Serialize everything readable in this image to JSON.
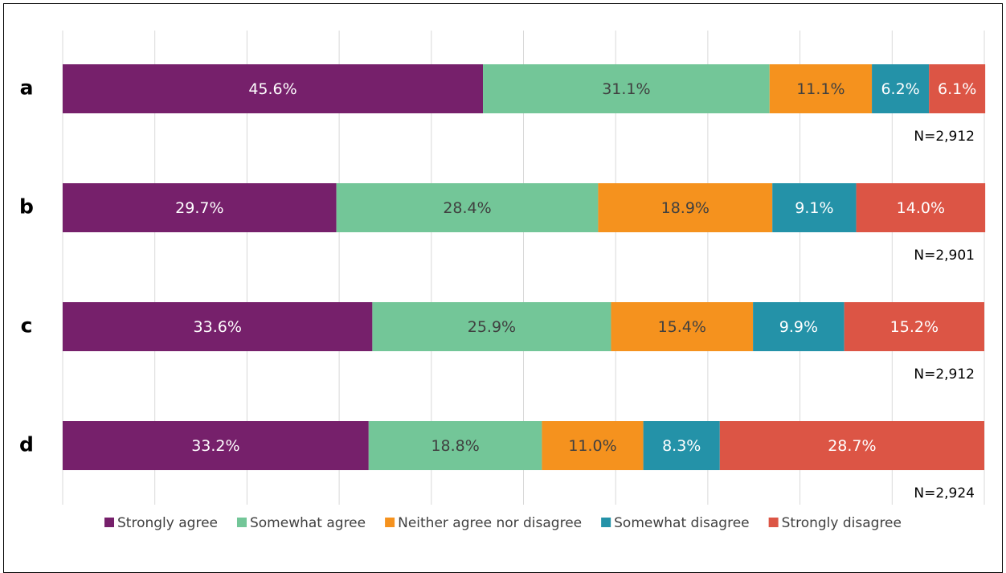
{
  "chart_data": {
    "type": "stacked_bar_horizontal",
    "categories": [
      "a",
      "b",
      "c",
      "d"
    ],
    "annotations": [
      "N=2,912",
      "N=2,901",
      "N=2,912",
      "N=2,924"
    ],
    "xlim": [
      0,
      100
    ],
    "xticks": [
      0,
      10,
      20,
      30,
      40,
      50,
      60,
      70,
      80,
      90,
      100
    ],
    "grid": true,
    "legend": "bottom",
    "series": [
      {
        "name": "Strongly agree",
        "color": "#76206b",
        "label_color": "#ffffff",
        "values": [
          45.6,
          29.7,
          33.6,
          33.2
        ],
        "value_labels": [
          "45.6%",
          "29.7%",
          "33.6%",
          "33.2%"
        ]
      },
      {
        "name": "Somewhat agree",
        "color": "#73c698",
        "label_color": "#404040",
        "values": [
          31.1,
          28.4,
          25.9,
          18.8
        ],
        "value_labels": [
          "31.1%",
          "28.4%",
          "25.9%",
          "18.8%"
        ]
      },
      {
        "name": "Neither agree nor disagree",
        "color": "#f5921e",
        "label_color": "#404040",
        "values": [
          11.1,
          18.9,
          15.4,
          11.0
        ],
        "value_labels": [
          "11.1%",
          "18.9%",
          "15.4%",
          "11.0%"
        ]
      },
      {
        "name": "Somewhat disagree",
        "color": "#2492a8",
        "label_color": "#ffffff",
        "values": [
          6.2,
          9.1,
          9.9,
          8.3
        ],
        "value_labels": [
          "6.2%",
          "9.1%",
          "9.9%",
          "8.3%"
        ]
      },
      {
        "name": "Strongly disagree",
        "color": "#dc5545",
        "label_color": "#ffffff",
        "values": [
          6.1,
          14.0,
          15.2,
          28.7
        ],
        "value_labels": [
          "6.1%",
          "14.0%",
          "15.2%",
          "28.7%"
        ]
      }
    ]
  }
}
